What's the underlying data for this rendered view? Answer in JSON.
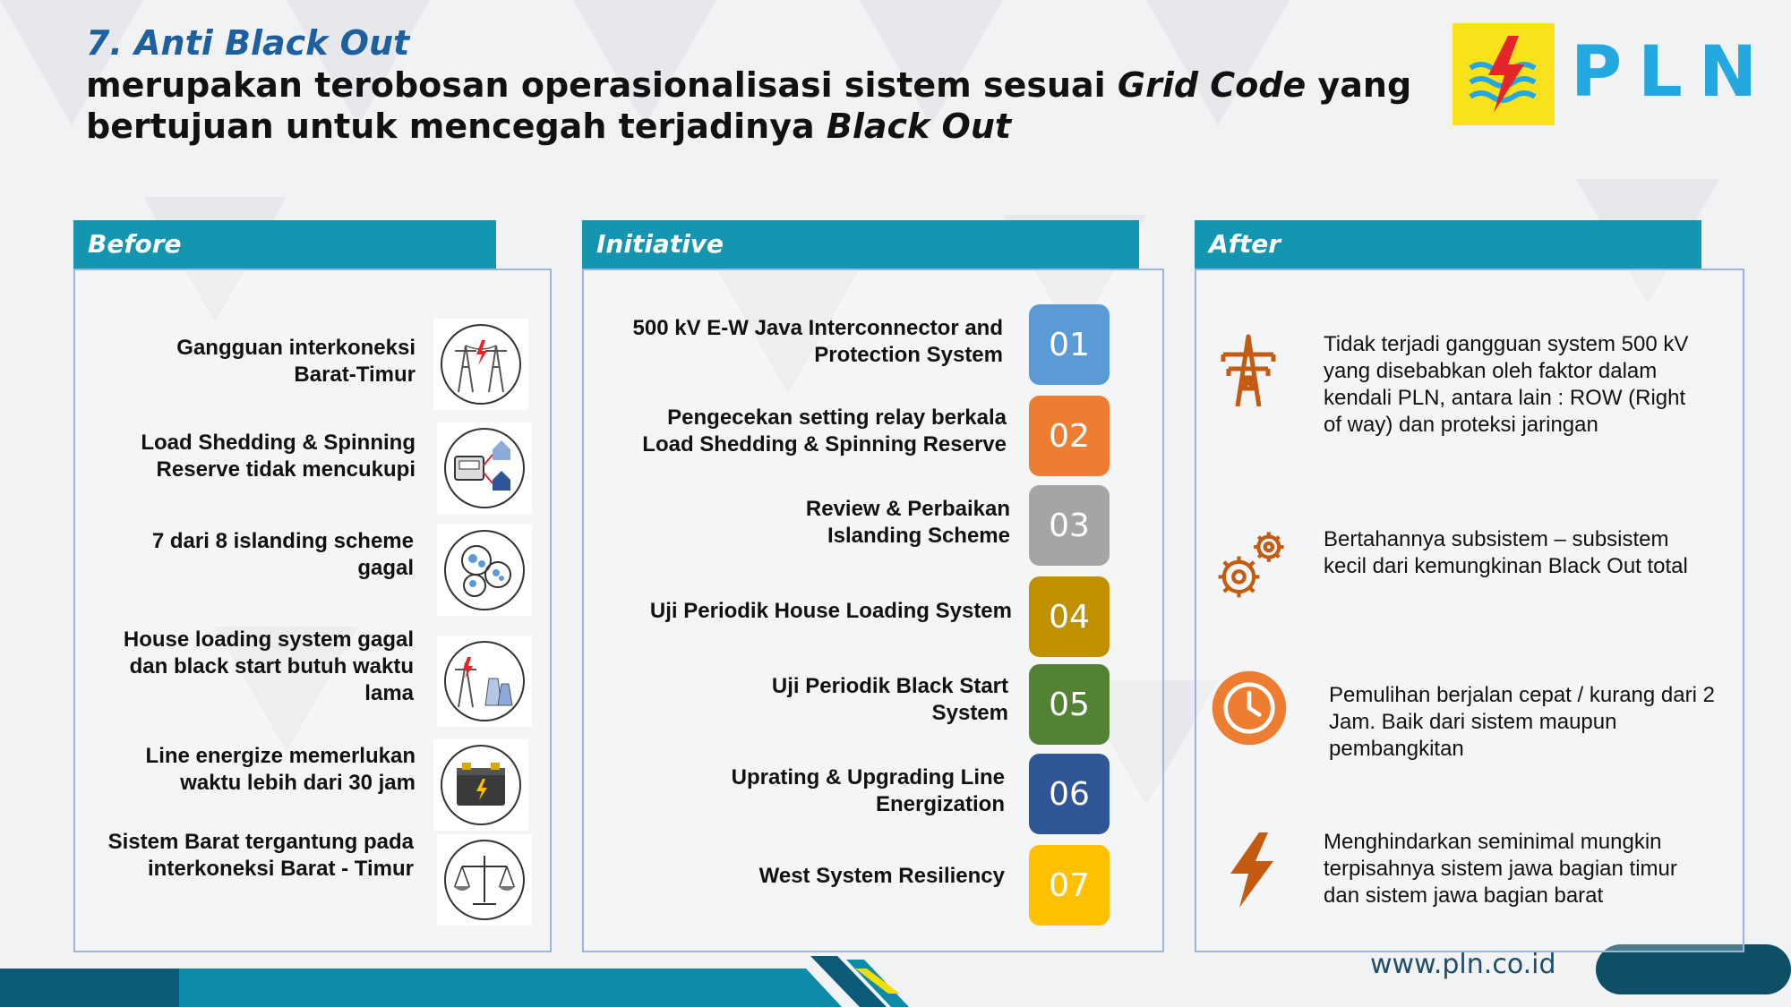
{
  "header": {
    "title": "7. Anti Black Out",
    "subtitle_line1_a": "merupakan terobosan operasionalisasi sistem sesuai ",
    "subtitle_line1_b": "Grid Code",
    "subtitle_line1_c": " yang",
    "subtitle_line2_a": "bertujuan untuk mencegah terjadinya ",
    "subtitle_line2_b": "Black Out"
  },
  "logo": {
    "text": "PLN",
    "box_color": "#f9e21a",
    "text_color": "#23a8e0"
  },
  "before": {
    "heading": "Before",
    "items": [
      {
        "line1": "Gangguan interkoneksi",
        "line2": "Barat-Timur",
        "line3": "",
        "icon": "transmission-tower-icon"
      },
      {
        "line1": "Load Shedding & Spinning",
        "line2": "Reserve tidak mencukupi",
        "line3": "",
        "icon": "power-meter-houses-icon"
      },
      {
        "line1": "7 dari 8 islanding scheme",
        "line2": "gagal",
        "line3": "",
        "icon": "islands-icon"
      },
      {
        "line1": "House loading system gagal",
        "line2": "dan black start butuh waktu",
        "line3": "lama",
        "icon": "power-plant-icon"
      },
      {
        "line1": "Line energize memerlukan",
        "line2": "waktu lebih dari 30 jam",
        "line3": "",
        "icon": "battery-icon"
      },
      {
        "line1": "Sistem Barat tergantung pada",
        "line2": "interkoneksi Barat - Timur",
        "line3": "",
        "icon": "balance-scale-icon"
      }
    ]
  },
  "initiative": {
    "heading": "Initiative",
    "items": [
      {
        "line1": "500 kV E-W Java Interconnector and",
        "line2": "Protection System",
        "number": "01",
        "color": "#5b9bd5"
      },
      {
        "line1": "Pengecekan setting relay berkala",
        "line2": "Load Shedding & Spinning Reserve",
        "number": "02",
        "color": "#ed7d31"
      },
      {
        "line1": "Review & Perbaikan",
        "line2": "Islanding Scheme",
        "number": "03",
        "color": "#a5a5a5"
      },
      {
        "line1": "Uji Periodik House Loading System",
        "line2": "",
        "number": "04",
        "color": "#bf9000"
      },
      {
        "line1": "Uji Periodik Black Start",
        "line2": "System",
        "number": "05",
        "color": "#548235"
      },
      {
        "line1": "Uprating & Upgrading Line",
        "line2": "Energization",
        "number": "06",
        "color": "#2f5597"
      },
      {
        "line1": "West System Resiliency",
        "line2": "",
        "number": "07",
        "color": "#ffc000"
      }
    ]
  },
  "after": {
    "heading": "After",
    "items": [
      {
        "line1": "Tidak terjadi gangguan system 500 kV",
        "line2": "yang disebabkan oleh faktor dalam",
        "line3": "kendali PLN, antara lain : ROW (Right",
        "line4": "of way) dan proteksi jaringan",
        "icon": "tower-icon"
      },
      {
        "line1": "Bertahannya subsistem – subsistem",
        "line2": "kecil dari kemungkinan Black Out total",
        "line3": "",
        "line4": "",
        "icon": "gears-icon"
      },
      {
        "line1": "Pemulihan berjalan cepat / kurang dari 2",
        "line2": "Jam. Baik dari sistem maupun",
        "line3": "pembangkitan",
        "line4": "",
        "icon": "clock-icon"
      },
      {
        "line1": "Menghindarkan seminimal mungkin",
        "line2": "terpisahnya sistem jawa bagian timur",
        "line3": "dan sistem jawa bagian barat",
        "line4": "",
        "icon": "lightning-icon"
      }
    ],
    "icon_color": "#c55a11"
  },
  "footer": {
    "url": "www.pln.co.id",
    "bar_color": "#0e7a92"
  }
}
